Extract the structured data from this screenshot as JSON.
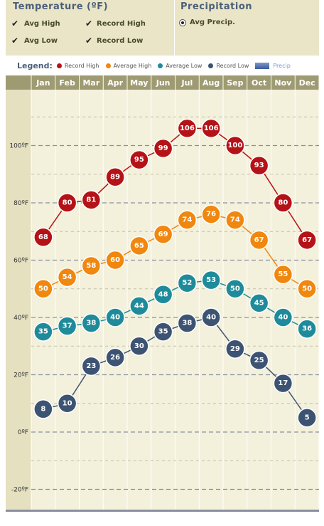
{
  "controls": {
    "temperature_title": "Temperature (ºF)",
    "avg_high": "Avg High",
    "record_high": "Record High",
    "avg_low": "Avg Low",
    "record_low": "Record Low",
    "check_glyph": "✔",
    "precipitation_title": "Precipitation",
    "avg_precip": "Avg Precip."
  },
  "legend": {
    "title": "Legend:",
    "items": [
      "Record High",
      "Average High",
      "Average Low",
      "Record Low",
      "Precip"
    ]
  },
  "colors": {
    "record_high": "#b51218",
    "average_high": "#f0870f",
    "average_low": "#1f8b9a",
    "record_low": "#3d5372",
    "header_band": "#9e9b72",
    "plot_bg": "#f3f0dc",
    "axis_strip": "#e4e0c0",
    "panel_bg": "#e9e5c6"
  },
  "chart_data": {
    "type": "line",
    "categories": [
      "Jan",
      "Feb",
      "Mar",
      "Apr",
      "May",
      "Jun",
      "Jul",
      "Aug",
      "Sep",
      "Oct",
      "Nov",
      "Dec"
    ],
    "series": [
      {
        "name": "Record High",
        "values": [
          68,
          80,
          81,
          89,
          95,
          99,
          106,
          106,
          100,
          93,
          80,
          67
        ]
      },
      {
        "name": "Average High",
        "values": [
          50,
          54,
          58,
          60,
          65,
          69,
          74,
          76,
          74,
          67,
          55,
          50
        ]
      },
      {
        "name": "Average Low",
        "values": [
          35,
          37,
          38,
          40,
          44,
          48,
          52,
          53,
          50,
          45,
          40,
          36
        ]
      },
      {
        "name": "Record Low",
        "values": [
          8,
          10,
          23,
          26,
          30,
          35,
          38,
          40,
          29,
          25,
          17,
          5
        ]
      }
    ],
    "y_ticks": [
      "100ºF",
      "80ºF",
      "60ºF",
      "40ºF",
      "20ºF",
      "0ºF",
      "-20ºF"
    ],
    "y_tick_values": [
      100,
      80,
      60,
      40,
      20,
      0,
      -20
    ],
    "ylim": [
      -20,
      122
    ],
    "grid": true
  }
}
